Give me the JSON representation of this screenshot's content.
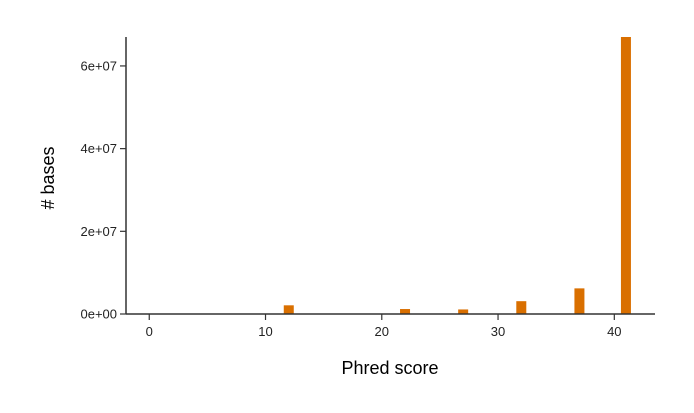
{
  "chart_data": {
    "type": "bar",
    "title": "",
    "xlabel": "Phred score",
    "ylabel": "# bases",
    "x": [
      12,
      22,
      27,
      32,
      37,
      41
    ],
    "values": [
      2100000,
      1200000,
      1100000,
      3100000,
      6200000,
      67000000
    ],
    "xlim": [
      -2,
      43.5
    ],
    "ylim": [
      0,
      67000000
    ],
    "xticks": [
      0,
      10,
      20,
      30,
      40
    ],
    "xtick_labels": [
      "0",
      "10",
      "20",
      "30",
      "40"
    ],
    "yticks": [
      0,
      20000000,
      40000000,
      60000000
    ],
    "ytick_labels": [
      "0e+00",
      "2e+07",
      "4e+07",
      "6e+07"
    ],
    "bar_color": "#d96f00",
    "grid": false,
    "legend": "none"
  }
}
